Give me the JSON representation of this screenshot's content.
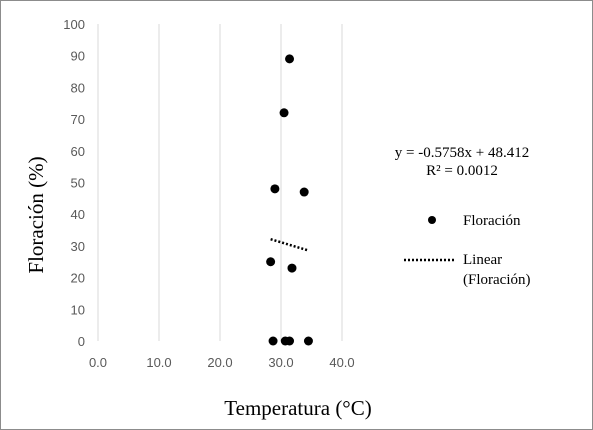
{
  "chart_data": {
    "type": "scatter",
    "xlabel": "Temperatura (°C)",
    "ylabel": "Floración (%)",
    "xlim": [
      0,
      40
    ],
    "ylim": [
      0,
      100
    ],
    "x_ticks": [
      "0.0",
      "10.0",
      "20.0",
      "30.0",
      "40.0"
    ],
    "y_ticks": [
      "0",
      "10",
      "20",
      "30",
      "40",
      "50",
      "60",
      "70",
      "80",
      "90",
      "100"
    ],
    "grid": "vertical-only",
    "series": [
      {
        "name": "Floración",
        "color": "#000000",
        "points": [
          {
            "x": 31.4,
            "y": 89
          },
          {
            "x": 30.5,
            "y": 72
          },
          {
            "x": 29.0,
            "y": 48
          },
          {
            "x": 33.8,
            "y": 47
          },
          {
            "x": 28.3,
            "y": 25
          },
          {
            "x": 31.8,
            "y": 23
          },
          {
            "x": 28.7,
            "y": 0
          },
          {
            "x": 30.7,
            "y": 0
          },
          {
            "x": 31.4,
            "y": 0
          },
          {
            "x": 34.5,
            "y": 0
          }
        ]
      }
    ],
    "trendline": {
      "name": "Linear (Floración)",
      "type": "linear",
      "slope": -0.5758,
      "intercept": 48.412,
      "x_range": [
        28.3,
        34.5
      ],
      "equation_text": "y = -0.5758x + 48.412",
      "r2_text": "R² = 0.0012"
    },
    "legend": {
      "position": "right",
      "entries": [
        {
          "label": "Floración",
          "marker": "dot"
        },
        {
          "label_line1": "Linear",
          "label_line2": "(Floración)",
          "marker": "dotted-line"
        }
      ]
    }
  }
}
